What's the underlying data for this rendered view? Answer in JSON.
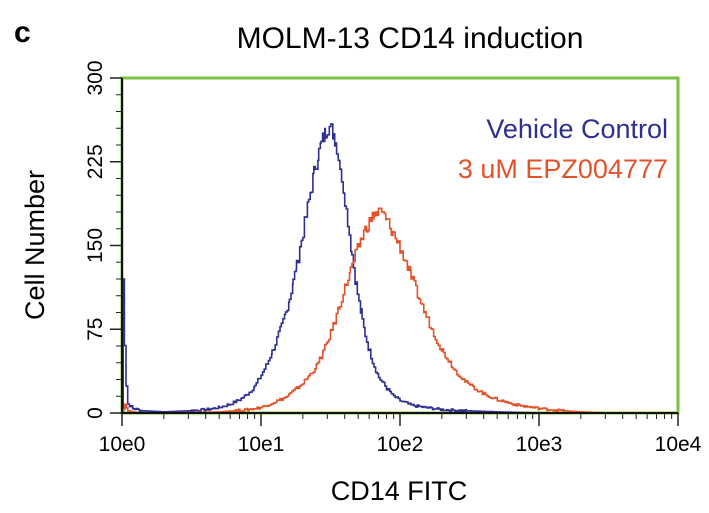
{
  "panel_label": "c",
  "chart_data": {
    "type": "line",
    "title": "MOLM-13 CD14 induction",
    "xlabel": "CD14 FITC",
    "ylabel": "Cell Number",
    "xscale": "log",
    "xlim": [
      1,
      10000
    ],
    "ylim": [
      0,
      300
    ],
    "xticks": [
      1,
      10,
      100,
      1000,
      10000
    ],
    "xtick_labels": [
      "10e0",
      "10e1",
      "10e2",
      "10e3",
      "10e4"
    ],
    "yticks": [
      0,
      75,
      150,
      225,
      300
    ],
    "ytick_labels": [
      "0",
      "75",
      "150",
      "225",
      "300"
    ],
    "frame_color": "#7cc142",
    "legend_position": "top-right",
    "series": [
      {
        "name": "Vehicle Control",
        "color": "#2e2f8f",
        "points": [
          [
            1.0,
            0
          ],
          [
            1.02,
            120
          ],
          [
            1.04,
            60
          ],
          [
            1.07,
            25
          ],
          [
            1.1,
            8
          ],
          [
            1.2,
            4
          ],
          [
            1.4,
            2
          ],
          [
            2.0,
            1
          ],
          [
            3.0,
            2
          ],
          [
            4.0,
            3
          ],
          [
            5.0,
            5
          ],
          [
            6.0,
            8
          ],
          [
            7.0,
            12
          ],
          [
            8.0,
            17
          ],
          [
            9.0,
            24
          ],
          [
            10.0,
            34
          ],
          [
            11.0,
            44
          ],
          [
            12.0,
            55
          ],
          [
            13.0,
            66
          ],
          [
            14.0,
            78
          ],
          [
            15.0,
            90
          ],
          [
            16.0,
            103
          ],
          [
            17.0,
            118
          ],
          [
            18.0,
            132
          ],
          [
            19.0,
            148
          ],
          [
            20.0,
            162
          ],
          [
            21.0,
            176
          ],
          [
            22.0,
            190
          ],
          [
            23.0,
            203
          ],
          [
            24.0,
            215
          ],
          [
            25.0,
            225
          ],
          [
            26.0,
            234
          ],
          [
            27.0,
            241
          ],
          [
            28.0,
            247
          ],
          [
            29.0,
            251
          ],
          [
            30.0,
            255
          ],
          [
            31.0,
            256
          ],
          [
            32.0,
            254
          ],
          [
            33.0,
            250
          ],
          [
            34.0,
            245
          ],
          [
            35.0,
            238
          ],
          [
            36.0,
            230
          ],
          [
            38.0,
            212
          ],
          [
            40.0,
            192
          ],
          [
            42.0,
            172
          ],
          [
            45.0,
            142
          ],
          [
            48.0,
            115
          ],
          [
            52.0,
            90
          ],
          [
            56.0,
            70
          ],
          [
            60.0,
            55
          ],
          [
            65.0,
            42
          ],
          [
            70.0,
            32
          ],
          [
            80.0,
            22
          ],
          [
            90.0,
            15
          ],
          [
            100.0,
            11
          ],
          [
            120.0,
            7
          ],
          [
            150.0,
            5
          ],
          [
            200.0,
            3
          ],
          [
            300.0,
            2
          ],
          [
            500.0,
            1
          ],
          [
            1000.0,
            0
          ],
          [
            7000.0,
            0
          ]
        ]
      },
      {
        "name": "3 uM EPZ004777",
        "color": "#e2532b",
        "points": [
          [
            1.0,
            0
          ],
          [
            1.05,
            8
          ],
          [
            1.1,
            2
          ],
          [
            1.3,
            0
          ],
          [
            2.0,
            0
          ],
          [
            5.0,
            1
          ],
          [
            8.0,
            3
          ],
          [
            10.0,
            5
          ],
          [
            12.0,
            9
          ],
          [
            15.0,
            14
          ],
          [
            18.0,
            22
          ],
          [
            20.0,
            27
          ],
          [
            22.0,
            33
          ],
          [
            25.0,
            42
          ],
          [
            28.0,
            55
          ],
          [
            30.0,
            64
          ],
          [
            33.0,
            78
          ],
          [
            36.0,
            94
          ],
          [
            40.0,
            112
          ],
          [
            44.0,
            128
          ],
          [
            48.0,
            142
          ],
          [
            52.0,
            155
          ],
          [
            56.0,
            164
          ],
          [
            60.0,
            171
          ],
          [
            65.0,
            177
          ],
          [
            70.0,
            180
          ],
          [
            75.0,
            178
          ],
          [
            80.0,
            172
          ],
          [
            90.0,
            160
          ],
          [
            100.0,
            148
          ],
          [
            110.0,
            135
          ],
          [
            120.0,
            122
          ],
          [
            130.0,
            110
          ],
          [
            150.0,
            90
          ],
          [
            170.0,
            74
          ],
          [
            200.0,
            56
          ],
          [
            250.0,
            38
          ],
          [
            300.0,
            27
          ],
          [
            400.0,
            17
          ],
          [
            500.0,
            12
          ],
          [
            700.0,
            7
          ],
          [
            1000.0,
            4
          ],
          [
            1500.0,
            2
          ],
          [
            2000.0,
            1
          ],
          [
            3000.0,
            0
          ],
          [
            7000.0,
            0
          ]
        ]
      }
    ]
  }
}
